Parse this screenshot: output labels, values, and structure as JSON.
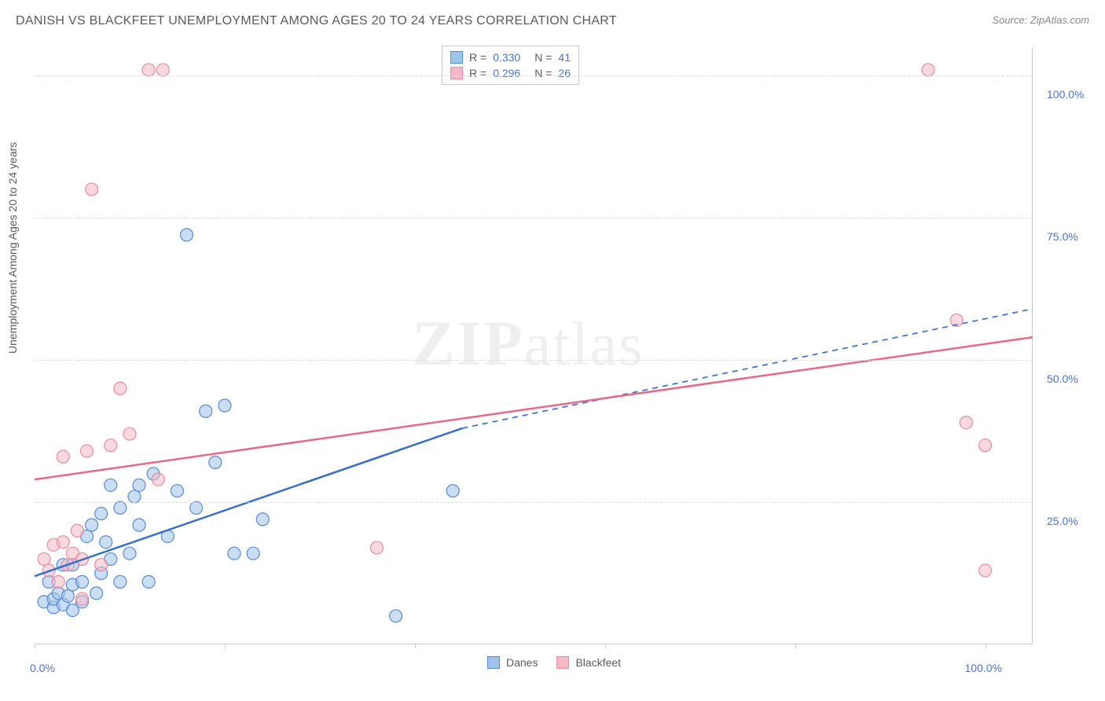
{
  "title": "DANISH VS BLACKFEET UNEMPLOYMENT AMONG AGES 20 TO 24 YEARS CORRELATION CHART",
  "source": "Source: ZipAtlas.com",
  "yaxis_label": "Unemployment Among Ages 20 to 24 years",
  "watermark": {
    "zip": "ZIP",
    "atlas": "atlas"
  },
  "chart": {
    "type": "scatter",
    "xlim": [
      0,
      105
    ],
    "ylim": [
      0,
      105
    ],
    "background_color": "#ffffff",
    "grid_color": "#dcdcdc",
    "axis_color": "#c9c9c9",
    "tick_label_color": "#4a76c7",
    "point_radius": 8,
    "point_opacity": 0.55,
    "series": [
      {
        "name": "Danes",
        "color_fill": "#9fc3ea",
        "color_stroke": "#5a8ad0",
        "trend": {
          "solid": {
            "x1": 0,
            "y1": 12,
            "x2": 45,
            "y2": 38
          },
          "dashed": {
            "x1": 45,
            "y1": 38,
            "x2": 105,
            "y2": 59
          },
          "color": "#3b6fc2",
          "width": 2.5
        },
        "stats": {
          "R": "0.330",
          "N": "41"
        },
        "points": [
          [
            1,
            7.5
          ],
          [
            1.5,
            11
          ],
          [
            2,
            6.5
          ],
          [
            2,
            8
          ],
          [
            2.5,
            9
          ],
          [
            3,
            7
          ],
          [
            3,
            14
          ],
          [
            3.5,
            8.5
          ],
          [
            4,
            6
          ],
          [
            4,
            10.5
          ],
          [
            4,
            14
          ],
          [
            5,
            7.5
          ],
          [
            5,
            11
          ],
          [
            5.5,
            19
          ],
          [
            6,
            21
          ],
          [
            6.5,
            9
          ],
          [
            7,
            12.5
          ],
          [
            7,
            23
          ],
          [
            7.5,
            18
          ],
          [
            8,
            15
          ],
          [
            8,
            28
          ],
          [
            9,
            11
          ],
          [
            9,
            24
          ],
          [
            10,
            16
          ],
          [
            10.5,
            26
          ],
          [
            11,
            21
          ],
          [
            11,
            28
          ],
          [
            12,
            11
          ],
          [
            12.5,
            30
          ],
          [
            14,
            19
          ],
          [
            15,
            27
          ],
          [
            16,
            72
          ],
          [
            17,
            24
          ],
          [
            18,
            41
          ],
          [
            19,
            32
          ],
          [
            20,
            42
          ],
          [
            21,
            16
          ],
          [
            23,
            16
          ],
          [
            24,
            22
          ],
          [
            38,
            5
          ],
          [
            44,
            27
          ]
        ]
      },
      {
        "name": "Blackfeet",
        "color_fill": "#f4b9c6",
        "color_stroke": "#e98ba1",
        "trend": {
          "solid": {
            "x1": 0,
            "y1": 29,
            "x2": 105,
            "y2": 54
          },
          "color": "#e56a8a",
          "width": 2.5
        },
        "stats": {
          "R": "0.296",
          "N": "26"
        },
        "points": [
          [
            1,
            15
          ],
          [
            1.5,
            13
          ],
          [
            2,
            17.5
          ],
          [
            2.5,
            11
          ],
          [
            3,
            18
          ],
          [
            3,
            33
          ],
          [
            3.5,
            14
          ],
          [
            4,
            16
          ],
          [
            4.5,
            20
          ],
          [
            5,
            8
          ],
          [
            5,
            15
          ],
          [
            5.5,
            34
          ],
          [
            6,
            80
          ],
          [
            7,
            14
          ],
          [
            8,
            35
          ],
          [
            9,
            45
          ],
          [
            10,
            37
          ],
          [
            12,
            101
          ],
          [
            13.5,
            101
          ],
          [
            13,
            29
          ],
          [
            36,
            17
          ],
          [
            94,
            101
          ],
          [
            97,
            57
          ],
          [
            98,
            39
          ],
          [
            100,
            35
          ],
          [
            100,
            13
          ]
        ]
      }
    ],
    "xticks": [
      0,
      20,
      40,
      60,
      80,
      100
    ],
    "xticks_label": [
      "0.0%",
      "100.0%"
    ],
    "yticks": [
      25,
      50,
      75,
      100
    ],
    "yticks_label": [
      "25.0%",
      "50.0%",
      "75.0%",
      "100.0%"
    ]
  },
  "legend_bottom": [
    {
      "label": "Danes",
      "fill": "#9fc3ea",
      "stroke": "#5a8ad0"
    },
    {
      "label": "Blackfeet",
      "fill": "#f4b9c6",
      "stroke": "#e98ba1"
    }
  ]
}
